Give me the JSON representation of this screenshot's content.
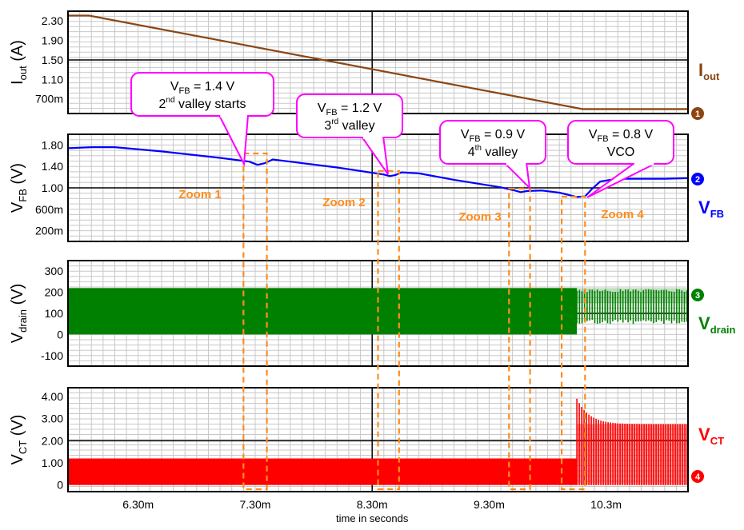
{
  "chart_data": {
    "type": "line",
    "x_axis": {
      "label": "time in seconds",
      "range_ms": [
        5.7,
        11.0
      ],
      "ticks": [
        {
          "value": 6.3,
          "label": "6.30m"
        },
        {
          "value": 7.3,
          "label": "7.30m"
        },
        {
          "value": 8.3,
          "label": "8.30m"
        },
        {
          "value": 9.3,
          "label": "9.30m"
        },
        {
          "value": 10.3,
          "label": "10.3m"
        }
      ]
    },
    "panels": [
      {
        "id": "iout",
        "ylabel_main": "I",
        "ylabel_sub": "out",
        "ylabel_unit": " (A)",
        "ylim": [
          0.4,
          2.5
        ],
        "ticks": [
          {
            "value": 2.3,
            "label": "2.30"
          },
          {
            "value": 1.9,
            "label": "1.90"
          },
          {
            "value": 1.5,
            "label": "1.50"
          },
          {
            "value": 1.1,
            "label": "1.10"
          },
          {
            "value": 0.7,
            "label": "700m"
          }
        ],
        "series": [
          {
            "legend_main": "I",
            "legend_sub": "out",
            "color": "#8B4513",
            "marker": "1",
            "points": [
              [
                5.7,
                2.41
              ],
              [
                5.88,
                2.41
              ],
              [
                10.1,
                0.49
              ],
              [
                11.0,
                0.49
              ]
            ]
          }
        ]
      },
      {
        "id": "vfb",
        "ylabel_main": "V",
        "ylabel_sub": "FB",
        "ylabel_unit": " (V)",
        "ylim": [
          0.0,
          2.0
        ],
        "ticks": [
          {
            "value": 1.8,
            "label": "1.80"
          },
          {
            "value": 1.4,
            "label": "1.40"
          },
          {
            "value": 1.0,
            "label": "1.00"
          },
          {
            "value": 0.6,
            "label": "600m"
          },
          {
            "value": 0.2,
            "label": "200m"
          }
        ],
        "series": [
          {
            "legend_main": "V",
            "legend_sub": "FB",
            "color": "#0000FF",
            "marker": "2",
            "points": [
              [
                5.7,
                1.74
              ],
              [
                5.9,
                1.76
              ],
              [
                6.1,
                1.76
              ],
              [
                6.5,
                1.68
              ],
              [
                7.0,
                1.56
              ],
              [
                7.25,
                1.49
              ],
              [
                7.32,
                1.43
              ],
              [
                7.38,
                1.46
              ],
              [
                7.45,
                1.53
              ],
              [
                7.6,
                1.49
              ],
              [
                8.0,
                1.38
              ],
              [
                8.4,
                1.25
              ],
              [
                8.45,
                1.22
              ],
              [
                8.5,
                1.24
              ],
              [
                8.55,
                1.29
              ],
              [
                8.7,
                1.27
              ],
              [
                9.0,
                1.15
              ],
              [
                9.4,
                1.01
              ],
              [
                9.52,
                0.95
              ],
              [
                9.57,
                0.92
              ],
              [
                9.62,
                0.94
              ],
              [
                9.75,
                0.95
              ],
              [
                9.9,
                0.91
              ],
              [
                10.05,
                0.83
              ],
              [
                10.12,
                0.84
              ],
              [
                10.18,
                0.98
              ],
              [
                10.25,
                1.12
              ],
              [
                10.4,
                1.17
              ],
              [
                10.8,
                1.17
              ],
              [
                11.0,
                1.18
              ]
            ]
          }
        ]
      },
      {
        "id": "vdrain",
        "ylabel_main": "V",
        "ylabel_sub": "drain",
        "ylabel_unit": " (V)",
        "ylim": [
          -150,
          350
        ],
        "ticks": [
          {
            "value": 300,
            "label": "300"
          },
          {
            "value": 200,
            "label": "200"
          },
          {
            "value": 100,
            "label": "100"
          },
          {
            "value": 0,
            "label": "0"
          },
          {
            "value": -100,
            "label": "-100"
          }
        ],
        "series": [
          {
            "legend_main": "V",
            "legend_sub": "drain",
            "color": "#008000",
            "marker": "3",
            "band": {
              "x": [
                5.7,
                10.05
              ],
              "low": 0,
              "high": 220
            },
            "burst": {
              "x": [
                10.05,
                11.0
              ],
              "low": 50,
              "high": 215
            }
          }
        ]
      },
      {
        "id": "vct",
        "ylabel_main": "V",
        "ylabel_sub": "CT",
        "ylabel_unit": " (V)",
        "ylim": [
          -0.3,
          4.4
        ],
        "ticks": [
          {
            "value": 4.0,
            "label": "4.00"
          },
          {
            "value": 3.0,
            "label": "3.00"
          },
          {
            "value": 2.0,
            "label": "2.00"
          },
          {
            "value": 1.0,
            "label": "1.00"
          },
          {
            "value": 0.0,
            "label": "0"
          }
        ],
        "series": [
          {
            "legend_main": "V",
            "legend_sub": "CT",
            "color": "#FF0000",
            "marker": "4",
            "band": {
              "x": [
                5.7,
                10.05
              ],
              "low": 0.0,
              "high": 1.2
            },
            "burst": {
              "x": [
                10.05,
                11.0
              ],
              "low": 0.0,
              "high": 2.75,
              "peak": 3.9
            }
          }
        ]
      }
    ],
    "callouts": [
      {
        "line1_main": "V",
        "line1_sub": "FB",
        "line1_rest": " = 1.4 V",
        "line2_pre": "2",
        "line2_sup": "nd",
        "line2_post": " valley starts",
        "target_x": 7.32,
        "target_panel": "vfb",
        "target_y": 1.43
      },
      {
        "line1_main": "V",
        "line1_sub": "FB",
        "line1_rest": " = 1.2 V",
        "line2_pre": "3",
        "line2_sup": "rd",
        "line2_post": " valley",
        "target_x": 8.45,
        "target_panel": "vfb",
        "target_y": 1.22
      },
      {
        "line1_main": "V",
        "line1_sub": "FB",
        "line1_rest": " = 0.9 V",
        "line2_pre": "4",
        "line2_sup": "th",
        "line2_post": " valley",
        "target_x": 9.57,
        "target_panel": "vfb",
        "target_y": 0.92
      },
      {
        "line1_main": "V",
        "line1_sub": "FB",
        "line1_rest": " = 0.8 V",
        "line2_pre": "",
        "line2_sup": "",
        "line2_post": "VCO",
        "target_x": 10.1,
        "target_panel": "vfb",
        "target_y": 0.83
      }
    ],
    "zooms": [
      {
        "label": "Zoom 1",
        "x": [
          7.2,
          7.4
        ]
      },
      {
        "label": "Zoom 2",
        "x": [
          8.35,
          8.53
        ]
      },
      {
        "label": "Zoom 3",
        "x": [
          9.47,
          9.65
        ]
      },
      {
        "label": "Zoom 4",
        "x": [
          9.92,
          10.12
        ]
      }
    ],
    "colors": {
      "grid": "#c8c8c8",
      "major": "#000000",
      "zoom": "#FF8C1A",
      "callout_border": "#FF00FF"
    }
  }
}
